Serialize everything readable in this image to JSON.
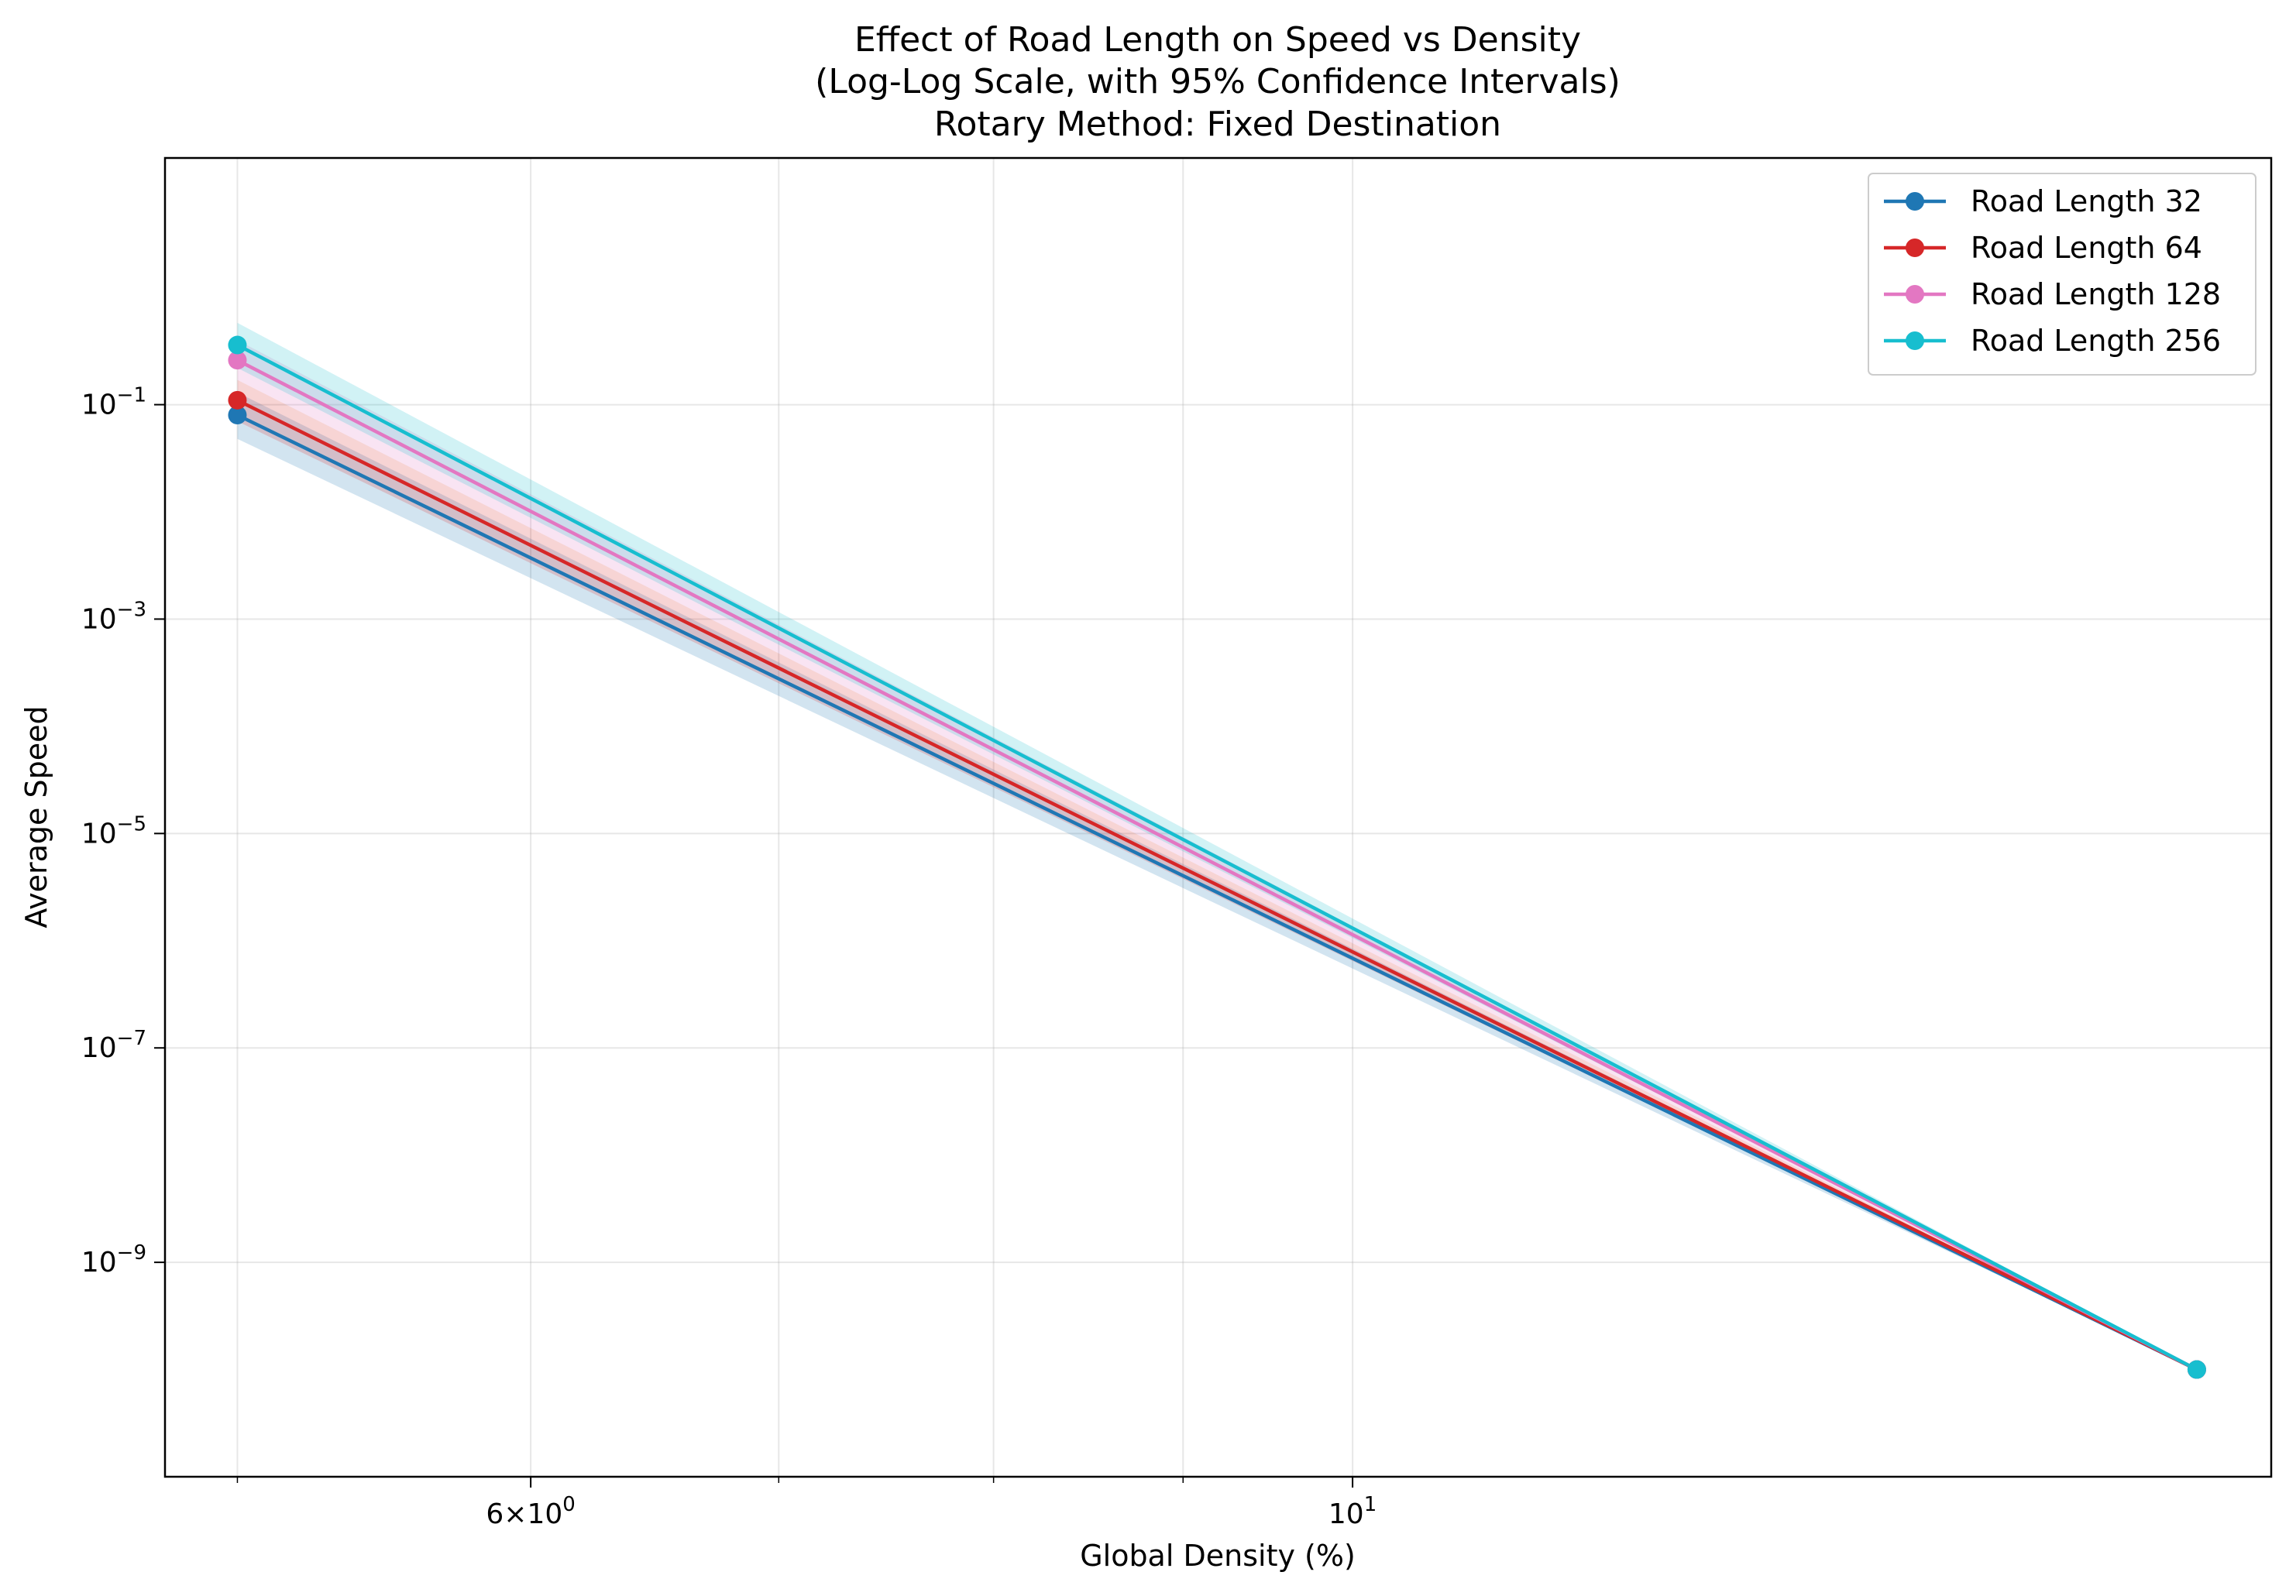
{
  "chart_data": {
    "type": "line",
    "title_lines": [
      "Effect of Road Length on Speed vs Density",
      "(Log-Log Scale, with 95% Confidence Intervals)",
      "Rotary Method: Fixed Destination"
    ],
    "xlabel": "Global Density (%)",
    "ylabel": "Average Speed",
    "xscale": "log",
    "yscale": "log",
    "xlim": [
      4.78,
      17.7
    ],
    "ylim": [
      1e-11,
      20.0
    ],
    "grid": true,
    "legend_position": "top-right",
    "x_ticks": [
      {
        "value": 6,
        "base": "6×10",
        "exp": "0"
      },
      {
        "value": 10,
        "base": "10",
        "exp": "1"
      }
    ],
    "x_minor_ticks": [
      7,
      8,
      9
    ],
    "y_ticks": [
      {
        "value": 0.1,
        "base": "10",
        "exp": "−1"
      },
      {
        "value": 0.001,
        "base": "10",
        "exp": "−3"
      },
      {
        "value": 1e-05,
        "base": "10",
        "exp": "−5"
      },
      {
        "value": 1e-07,
        "base": "10",
        "exp": "−7"
      },
      {
        "value": 1e-09,
        "base": "10",
        "exp": "−9"
      }
    ],
    "x": [
      5.0,
      16.9
    ],
    "series": [
      {
        "name": "Road Length 32",
        "color": "#1f77b4",
        "values": [
          0.08,
          1e-10
        ],
        "ci_low": [
          0.048,
          1e-10
        ],
        "ci_high": [
          0.13,
          1e-10
        ]
      },
      {
        "name": "Road Length 64",
        "color": "#d62728",
        "values": [
          0.11,
          1e-10
        ],
        "ci_low": [
          0.07,
          1e-10
        ],
        "ci_high": [
          0.17,
          1e-10
        ]
      },
      {
        "name": "Road Length 128",
        "color": "#e377c2",
        "values": [
          0.26,
          1e-10
        ],
        "ci_low": [
          0.17,
          1e-10
        ],
        "ci_high": [
          0.4,
          1e-10
        ]
      },
      {
        "name": "Road Length 256",
        "color": "#17becf",
        "values": [
          0.36,
          1e-10
        ],
        "ci_low": [
          0.22,
          1e-10
        ],
        "ci_high": [
          0.58,
          1e-10
        ]
      }
    ]
  }
}
